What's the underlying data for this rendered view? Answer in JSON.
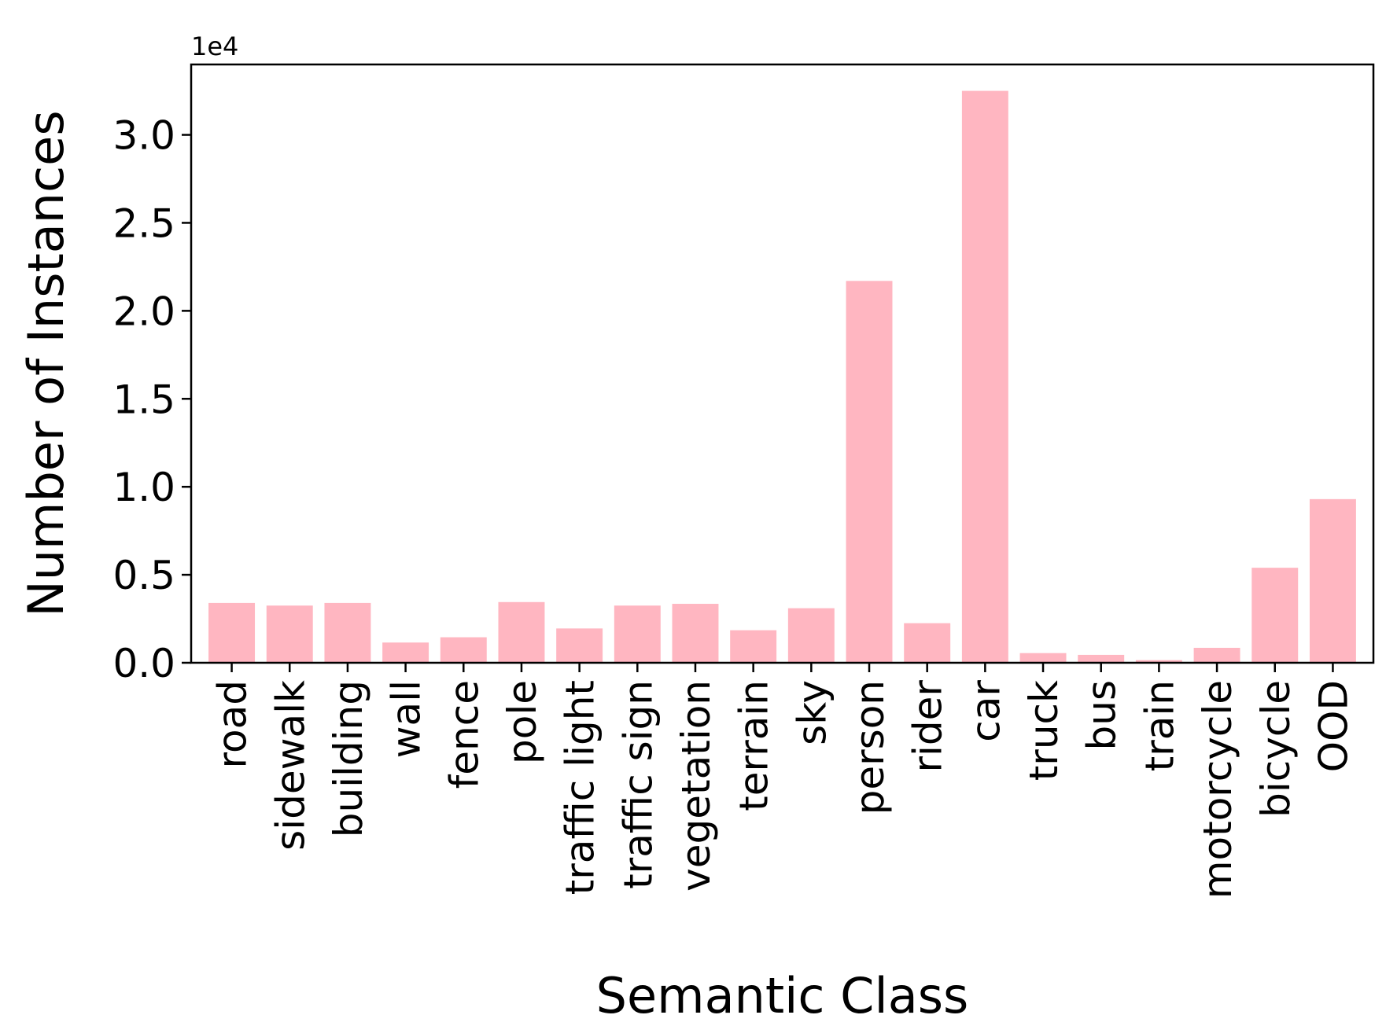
{
  "chart_data": {
    "type": "bar",
    "title": "",
    "xlabel": "Semantic Class",
    "ylabel": "Number of Instances",
    "y_scale_label": "1e4",
    "y_multiplier": 10000,
    "ylim": [
      0,
      34000
    ],
    "y_ticks": [
      0,
      5000,
      10000,
      15000,
      20000,
      25000,
      30000
    ],
    "y_tick_labels": [
      "0.0",
      "0.5",
      "1.0",
      "1.5",
      "2.0",
      "2.5",
      "3.0"
    ],
    "grid": false,
    "legend": "none",
    "bar_color": "#ffb6c1",
    "categories": [
      "road",
      "sidewalk",
      "building",
      "wall",
      "fence",
      "pole",
      "traffic light",
      "traffic sign",
      "vegetation",
      "terrain",
      "sky",
      "person",
      "rider",
      "car",
      "truck",
      "bus",
      "train",
      "motorcycle",
      "bicycle",
      "OOD"
    ],
    "values": [
      3400,
      3250,
      3400,
      1150,
      1450,
      3450,
      1950,
      3250,
      3350,
      1850,
      3100,
      21700,
      2250,
      32500,
      550,
      450,
      150,
      850,
      5400,
      9300
    ]
  }
}
